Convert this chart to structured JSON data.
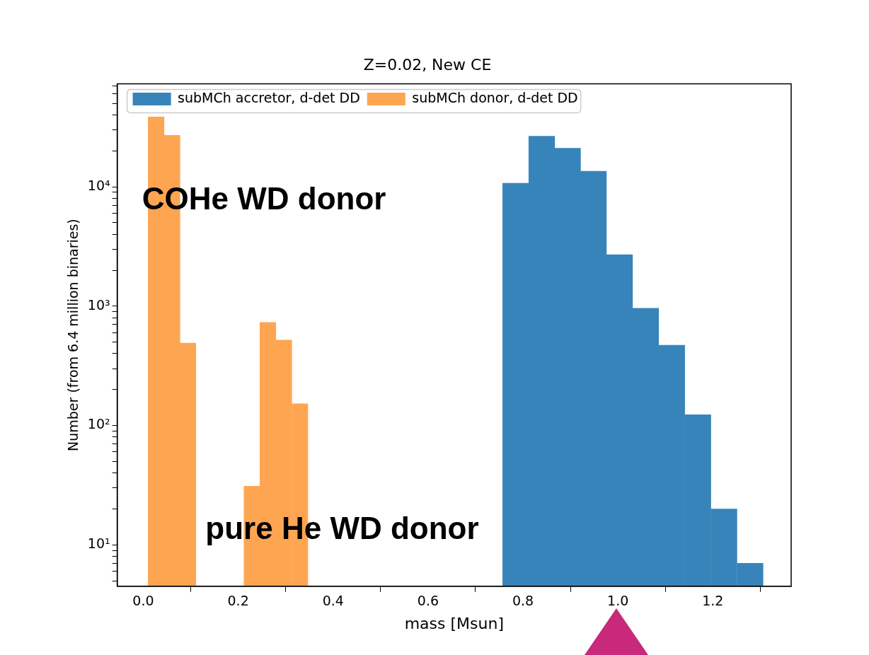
{
  "chart_data": {
    "type": "bar",
    "title": "Z=0.02, New CE",
    "xlabel": "mass [Msun]",
    "ylabel": "Number (from 6.4 million binaries)",
    "series": [
      {
        "name": "subMCh accretor, d-det DD",
        "color": "#3784bb",
        "x": [
          0.7845,
          0.8395,
          0.894,
          0.9485,
          1.0035,
          1.0585,
          1.1135,
          1.1685,
          1.2235,
          1.2785
        ],
        "values": [
          10700,
          26500,
          21000,
          13500,
          2700,
          960,
          470,
          123,
          20,
          7
        ]
      },
      {
        "name": "subMCh donor, d-det DD",
        "color": "#fea552",
        "x": [
          0.027,
          0.0605,
          0.094,
          0.229,
          0.2625,
          0.296,
          0.33
        ],
        "values": [
          38500,
          27000,
          490,
          31,
          730,
          520,
          152
        ]
      }
    ],
    "annotations": [
      "COHe WD donor",
      "pure He WD donor"
    ],
    "log": "y",
    "legend": "top left",
    "grid": false,
    "xlim": [
      -0.055,
      1.365
    ],
    "xticks": [
      {
        "value": 0,
        "label": "0.0"
      },
      {
        "value": 0.2,
        "label": "0.2"
      },
      {
        "value": 0.4,
        "label": "0.4"
      },
      {
        "value": 0.6,
        "label": "0.6"
      },
      {
        "value": 0.8,
        "label": "0.8"
      },
      {
        "value": 1.0,
        "label": "1.0"
      },
      {
        "value": 1.2,
        "label": "1.2"
      }
    ],
    "ylim": [
      4.5,
      73000
    ],
    "yticks": [
      {
        "value": 5,
        "label": null
      },
      {
        "value": 6,
        "label": null
      },
      {
        "value": 7,
        "label": null
      },
      {
        "value": 8,
        "label": null
      },
      {
        "value": 9,
        "label": null
      },
      {
        "value": 10,
        "label": "10¹"
      },
      {
        "value": 20,
        "label": null
      },
      {
        "value": 30,
        "label": null
      },
      {
        "value": 40,
        "label": null
      },
      {
        "value": 50,
        "label": null
      },
      {
        "value": 60,
        "label": null
      },
      {
        "value": 70,
        "label": null
      },
      {
        "value": 80,
        "label": null
      },
      {
        "value": 90,
        "label": null
      },
      {
        "value": 100,
        "label": "10²"
      },
      {
        "value": 200,
        "label": null
      },
      {
        "value": 300,
        "label": null
      },
      {
        "value": 400,
        "label": null
      },
      {
        "value": 500,
        "label": null
      },
      {
        "value": 600,
        "label": null
      },
      {
        "value": 700,
        "label": null
      },
      {
        "value": 800,
        "label": null
      },
      {
        "value": 900,
        "label": null
      },
      {
        "value": 1000,
        "label": "10³"
      },
      {
        "value": 2000,
        "label": null
      },
      {
        "value": 3000,
        "label": null
      },
      {
        "value": 4000,
        "label": null
      },
      {
        "value": 5000,
        "label": null
      },
      {
        "value": 6000,
        "label": null
      },
      {
        "value": 7000,
        "label": null
      },
      {
        "value": 8000,
        "label": null
      },
      {
        "value": 9000,
        "label": null
      },
      {
        "value": 10000,
        "label": "10⁴"
      },
      {
        "value": 20000,
        "label": null
      },
      {
        "value": 30000,
        "label": null
      },
      {
        "value": 40000,
        "label": null
      },
      {
        "value": 50000,
        "label": null
      },
      {
        "value": 60000,
        "label": null
      },
      {
        "value": 70000,
        "label": null
      }
    ]
  }
}
